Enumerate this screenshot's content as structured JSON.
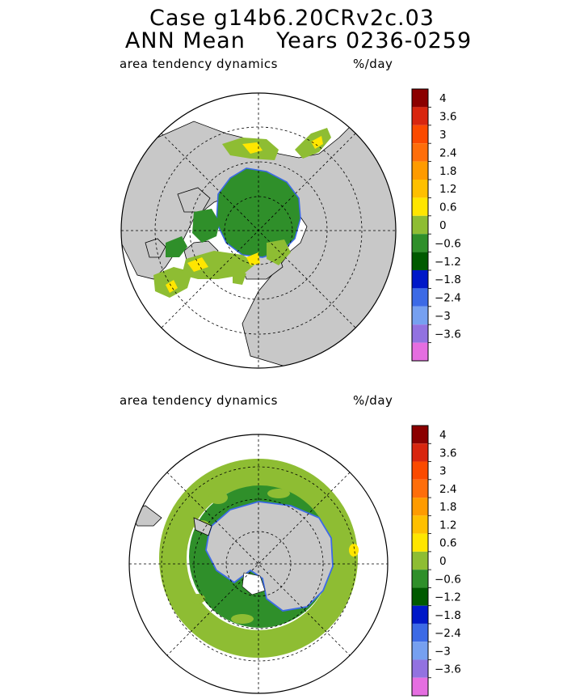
{
  "header": {
    "title_line1": "Case g14b6.20CRv2c.03",
    "title_line2": "ANN Mean    Years 0236-0259"
  },
  "panels": [
    {
      "id": "north",
      "field_label": "area tendency dynamics",
      "units": "%/day",
      "hemisphere": "Northern"
    },
    {
      "id": "south",
      "field_label": "area tendency dynamics",
      "units": "%/day",
      "hemisphere": "Southern"
    }
  ],
  "colorbar": {
    "labels": [
      "4",
      "3.6",
      "3",
      "2.4",
      "1.8",
      "1.2",
      "0.6",
      "0",
      "−0.6",
      "−1.2",
      "−1.8",
      "−2.4",
      "−3",
      "−3.6"
    ],
    "colors": [
      "#8b0000",
      "#d8260f",
      "#fb4a00",
      "#ff6e0a",
      "#ff9b00",
      "#ffc000",
      "#ffe600",
      "#8ebd33",
      "#2f8f2a",
      "#005a00",
      "#0018c8",
      "#3c6ae6",
      "#76a0f0",
      "#9272e0",
      "#e56ee0"
    ]
  },
  "map_colors": {
    "land": "#c8c8c8",
    "ocean": "#ffffff",
    "ice_positive_weak": "#8ebd33",
    "ice_negative_weak": "#2f8f2a",
    "ice_positive_mid": "#ffe600",
    "edge_negative": "#3c6ae6"
  }
}
